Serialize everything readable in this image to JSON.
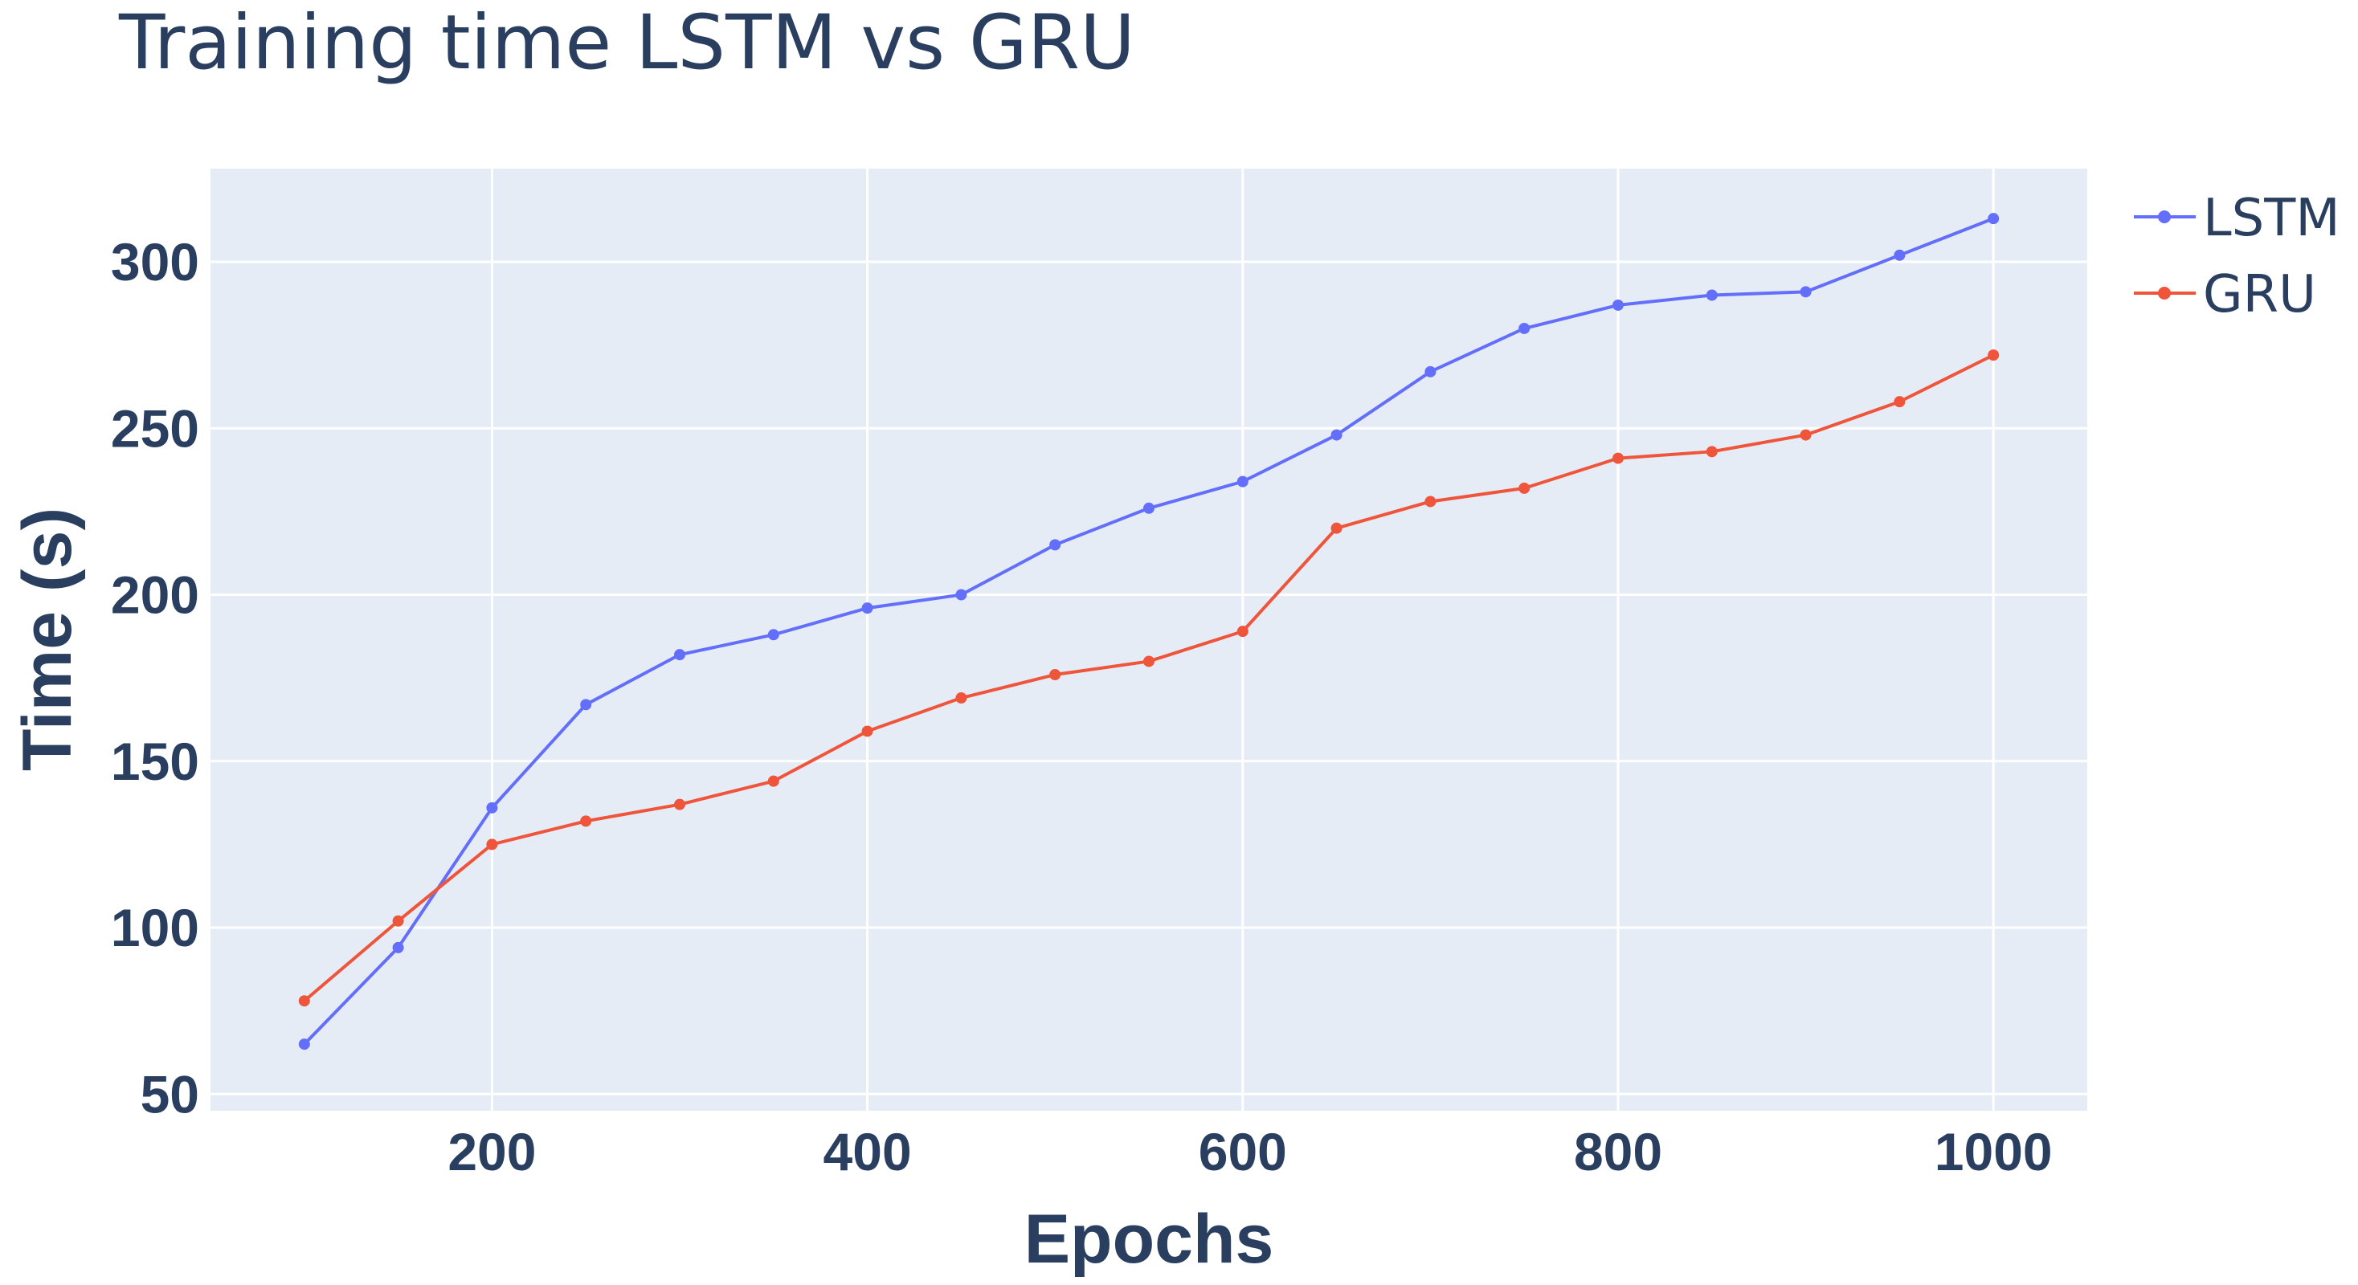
{
  "chart_data": {
    "type": "line",
    "title": "Training time LSTM vs GRU",
    "xlabel": "Epochs",
    "ylabel": "Time (s)",
    "x": [
      100,
      150,
      200,
      250,
      300,
      350,
      400,
      450,
      500,
      550,
      600,
      650,
      700,
      750,
      800,
      850,
      900,
      950,
      1000
    ],
    "xlim": [
      50,
      1050
    ],
    "ylim": [
      45,
      328
    ],
    "xticks": [
      200,
      400,
      600,
      800,
      1000
    ],
    "yticks": [
      50,
      100,
      150,
      200,
      250,
      300
    ],
    "grid": true,
    "legend_position": "top-right",
    "plot_background": "#e5ecf6",
    "series": [
      {
        "name": "LSTM",
        "color": "#636efa",
        "values": [
          65,
          94,
          136,
          167,
          182,
          188,
          196,
          200,
          215,
          226,
          234,
          248,
          267,
          280,
          287,
          290,
          291,
          302,
          313
        ]
      },
      {
        "name": "GRU",
        "color": "#ef553b",
        "values": [
          78,
          102,
          125,
          132,
          137,
          144,
          159,
          169,
          176,
          180,
          189,
          220,
          228,
          232,
          241,
          243,
          248,
          258,
          272
        ]
      }
    ]
  }
}
